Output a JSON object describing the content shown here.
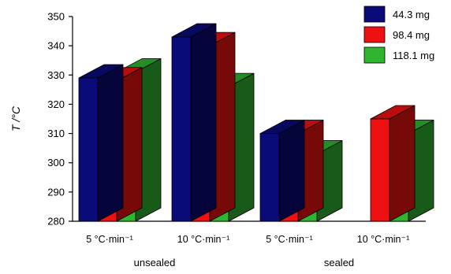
{
  "chart_data": {
    "type": "bar",
    "style": "3d",
    "ylabel": "T /°C",
    "ylim": [
      280,
      350
    ],
    "yticks": [
      280,
      290,
      300,
      310,
      320,
      330,
      340,
      350
    ],
    "categories": [
      "5 °C·min⁻¹",
      "10 °C·min⁻¹",
      "5 °C·min⁻¹",
      "10 °C·min⁻¹"
    ],
    "groups": [
      {
        "label": "unsealed",
        "categories": [
          0,
          1
        ]
      },
      {
        "label": "sealed",
        "categories": [
          2,
          3
        ]
      }
    ],
    "series": [
      {
        "name": "44.3 mg",
        "color": "#0a0a78",
        "values": [
          329,
          343,
          310,
          null
        ]
      },
      {
        "name": "98.4 mg",
        "color": "#ee1111",
        "values": [
          328,
          340,
          310,
          315
        ]
      },
      {
        "name": "118.1 mg",
        "color": "#2fb52f",
        "values": [
          331,
          326,
          303,
          310
        ]
      }
    ],
    "legend": "top-right",
    "grid": false
  }
}
